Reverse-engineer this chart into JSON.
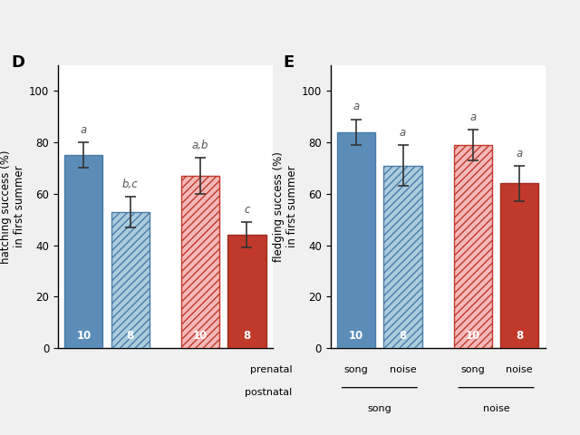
{
  "panel_D": {
    "title": "D",
    "ylabel": "hatching success (%)\nin first summer",
    "values": [
      75,
      53,
      67,
      44
    ],
    "errors": [
      5,
      6,
      7,
      5
    ],
    "labels_top": [
      "a",
      "b,c",
      "a,b",
      "c"
    ],
    "n_labels": [
      "10",
      "8",
      "10",
      "8"
    ],
    "ylim": [
      0,
      110
    ],
    "yticks": [
      0,
      20,
      40,
      60,
      80,
      100
    ],
    "bar_colors": [
      "#5b8db8",
      "#aaccdd",
      "#f5b8b8",
      "#c0392b"
    ],
    "bar_edge_colors": [
      "#4a7ca8",
      "#4a7ca8",
      "#c0392b",
      "#a03020"
    ],
    "hatch": [
      "",
      "////",
      "////",
      ""
    ],
    "x_positions": [
      0,
      1,
      2.5,
      3.5
    ]
  },
  "panel_E": {
    "title": "E",
    "ylabel": "fledging success (%)\nin first summer",
    "values": [
      84,
      71,
      79,
      64
    ],
    "errors": [
      5,
      8,
      6,
      7
    ],
    "labels_top": [
      "a",
      "a",
      "a",
      "a"
    ],
    "n_labels": [
      "10",
      "8",
      "10",
      "8"
    ],
    "ylim": [
      0,
      110
    ],
    "yticks": [
      0,
      20,
      40,
      60,
      80,
      100
    ],
    "bar_colors": [
      "#5b8db8",
      "#aaccdd",
      "#f5b8b8",
      "#c0392b"
    ],
    "bar_edge_colors": [
      "#4a7ca8",
      "#4a7ca8",
      "#c0392b",
      "#a03020"
    ],
    "hatch": [
      "",
      "////",
      "////",
      ""
    ],
    "x_positions": [
      0,
      1,
      2.5,
      3.5
    ],
    "row1_labels": [
      "song",
      "noise",
      "song",
      "noise"
    ],
    "prenatal_label": "prenatal",
    "postnatal_label": "postnatal",
    "group1_name": "song",
    "group2_name": "noise"
  },
  "fig_background": "#f0f0f0"
}
